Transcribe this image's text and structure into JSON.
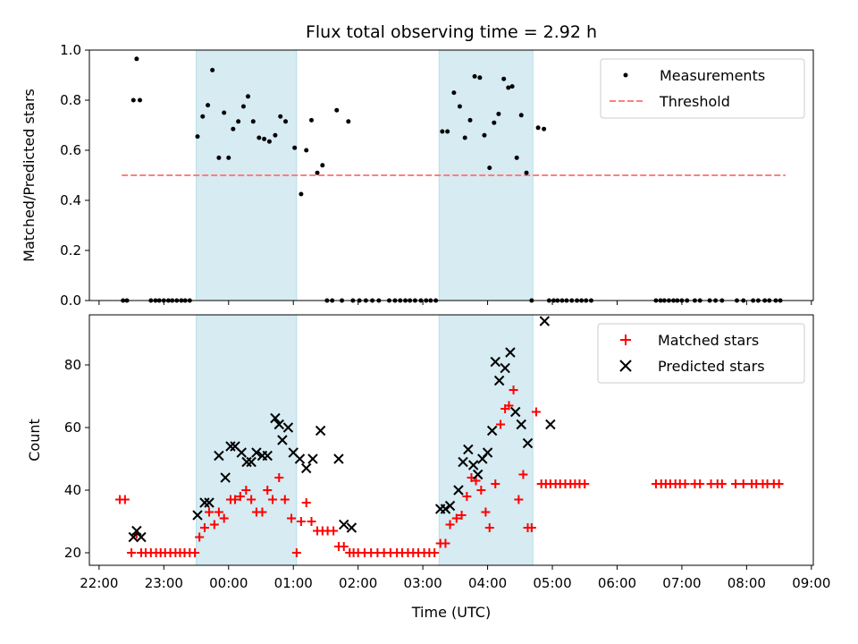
{
  "chart_data": [
    {
      "type": "scatter",
      "title": "Flux total observing time = 2.92 h",
      "ylabel": "Matched/Predicted stars",
      "xlabel": "",
      "xlim": [
        -2.15,
        9.03
      ],
      "ylim": [
        0,
        1.0
      ],
      "yticks": [
        0.0,
        0.2,
        0.4,
        0.6,
        0.8,
        1.0
      ],
      "ytick_labels": [
        "0.0",
        "0.2",
        "0.4",
        "0.6",
        "0.8",
        "1.0"
      ],
      "shaded_intervals": [
        [
          -0.5,
          1.05
        ],
        [
          3.25,
          4.7
        ]
      ],
      "shade_color": "#add8e6",
      "legend_position": "top-right",
      "series": [
        {
          "name": "Measurements",
          "marker": "dot",
          "color": "#000000",
          "x": [
            -1.63,
            -1.57,
            -1.47,
            -1.42,
            -1.37,
            -1.2,
            -1.13,
            -1.07,
            -1.0,
            -0.93,
            -0.87,
            -0.8,
            -0.73,
            -0.67,
            -0.6,
            -0.48,
            -0.4,
            -0.32,
            -0.25,
            -0.15,
            -0.07,
            0.0,
            0.07,
            0.15,
            0.23,
            0.3,
            0.38,
            0.47,
            0.55,
            0.63,
            0.72,
            0.8,
            0.88,
            1.02,
            1.12,
            1.2,
            1.28,
            1.37,
            1.45,
            1.52,
            1.6,
            1.67,
            1.75,
            1.85,
            1.92,
            2.02,
            2.12,
            2.22,
            2.32,
            2.48,
            2.57,
            2.65,
            2.73,
            2.8,
            2.88,
            2.97,
            3.05,
            3.12,
            3.2,
            3.3,
            3.38,
            3.48,
            3.57,
            3.65,
            3.73,
            3.8,
            3.88,
            3.95,
            4.03,
            4.1,
            4.17,
            4.25,
            4.32,
            4.38,
            4.45,
            4.52,
            4.6,
            4.68,
            4.78,
            4.87,
            4.95,
            5.02,
            5.08,
            5.15,
            5.22,
            5.3,
            5.38,
            5.45,
            5.52,
            5.6,
            6.6,
            6.67,
            6.73,
            6.8,
            6.87,
            6.93,
            7.0,
            7.08,
            7.2,
            7.28,
            7.43,
            7.52,
            7.62,
            7.85,
            7.95,
            8.1,
            8.18,
            8.28,
            8.35,
            8.45,
            8.52
          ],
          "y": [
            0,
            0,
            0.8,
            0.965,
            0.8,
            0,
            0,
            0,
            0,
            0,
            0,
            0,
            0,
            0,
            0,
            0.655,
            0.735,
            0.78,
            0.92,
            0.57,
            0.75,
            0.57,
            0.685,
            0.715,
            0.775,
            0.815,
            0.715,
            0.65,
            0.645,
            0.635,
            0.66,
            0.735,
            0.715,
            0.61,
            0.425,
            0.6,
            0.72,
            0.51,
            0.54,
            0,
            0,
            0.76,
            0,
            0.715,
            0,
            0,
            0,
            0,
            0,
            0,
            0,
            0,
            0,
            0,
            0,
            0,
            0,
            0,
            0,
            0.675,
            0.675,
            0.83,
            0.775,
            0.65,
            0.72,
            0.895,
            0.89,
            0.66,
            0.53,
            0.71,
            0.745,
            0.885,
            0.85,
            0.855,
            0.57,
            0.74,
            0.51,
            0,
            0.69,
            0.685,
            0,
            0,
            0,
            0,
            0,
            0,
            0,
            0,
            0,
            0,
            0,
            0,
            0,
            0,
            0,
            0,
            0,
            0,
            0,
            0,
            0,
            0,
            0,
            0,
            0,
            0,
            0,
            0,
            0,
            0,
            0
          ]
        },
        {
          "name": "Threshold",
          "marker": "dashed-line",
          "color": "#ff7f7f",
          "x": [
            -1.65,
            8.6
          ],
          "y": [
            0.5,
            0.5
          ]
        }
      ]
    },
    {
      "type": "scatter",
      "title": "",
      "ylabel": "Count",
      "xlabel": "Time (UTC)",
      "xlim": [
        -2.15,
        9.03
      ],
      "ylim": [
        16,
        96
      ],
      "yticks": [
        20,
        40,
        60,
        80
      ],
      "ytick_labels": [
        "20",
        "40",
        "60",
        "80"
      ],
      "xticks": [
        -2,
        -1,
        0,
        1,
        2,
        3,
        4,
        5,
        6,
        7,
        8,
        9
      ],
      "xtick_labels": [
        "22:00",
        "23:00",
        "00:00",
        "01:00",
        "02:00",
        "03:00",
        "04:00",
        "05:00",
        "06:00",
        "07:00",
        "08:00",
        "09:00"
      ],
      "shaded_intervals": [
        [
          -0.5,
          1.05
        ],
        [
          3.25,
          4.7
        ]
      ],
      "shade_color": "#add8e6",
      "legend_position": "top-right",
      "series": [
        {
          "name": "Matched stars",
          "marker": "plus",
          "color": "#ff0000",
          "x": [
            -1.68,
            -1.6,
            -1.5,
            -1.42,
            -1.35,
            -1.28,
            -1.2,
            -1.12,
            -1.05,
            -0.98,
            -0.9,
            -0.82,
            -0.75,
            -0.68,
            -0.6,
            -0.52,
            -0.45,
            -0.37,
            -0.3,
            -0.22,
            -0.15,
            -0.07,
            0.03,
            0.1,
            0.18,
            0.27,
            0.35,
            0.43,
            0.52,
            0.6,
            0.68,
            0.78,
            0.87,
            0.97,
            1.05,
            1.12,
            1.2,
            1.28,
            1.37,
            1.45,
            1.53,
            1.62,
            1.7,
            1.78,
            1.87,
            1.93,
            2.0,
            2.1,
            2.2,
            2.3,
            2.4,
            2.5,
            2.6,
            2.68,
            2.77,
            2.85,
            2.93,
            3.02,
            3.1,
            3.18,
            3.27,
            3.35,
            3.42,
            3.52,
            3.6,
            3.68,
            3.75,
            3.82,
            3.9,
            3.97,
            4.03,
            4.12,
            4.2,
            4.27,
            4.33,
            4.4,
            4.48,
            4.55,
            4.62,
            4.68,
            4.75,
            4.83,
            4.9,
            4.97,
            5.05,
            5.12,
            5.2,
            5.28,
            5.35,
            5.42,
            5.5,
            6.6,
            6.68,
            6.75,
            6.82,
            6.9,
            6.97,
            7.05,
            7.2,
            7.28,
            7.45,
            7.55,
            7.62,
            7.83,
            7.95,
            8.08,
            8.15,
            8.25,
            8.32,
            8.42,
            8.5
          ],
          "y": [
            37,
            37,
            20,
            26,
            20,
            20,
            20,
            20,
            20,
            20,
            20,
            20,
            20,
            20,
            20,
            20,
            25,
            28,
            33,
            29,
            33,
            31,
            37,
            37,
            38,
            40,
            37,
            33,
            33,
            40,
            37,
            44,
            37,
            31,
            20,
            30,
            36,
            30,
            27,
            27,
            27,
            27,
            22,
            22,
            20,
            20,
            20,
            20,
            20,
            20,
            20,
            20,
            20,
            20,
            20,
            20,
            20,
            20,
            20,
            20,
            23,
            23,
            29,
            31,
            32,
            38,
            44,
            43,
            40,
            33,
            28,
            42,
            61,
            66,
            67,
            72,
            37,
            45,
            28,
            28,
            65,
            42,
            42,
            42,
            42,
            42,
            42,
            42,
            42,
            42,
            42,
            42,
            42,
            42,
            42,
            42,
            42,
            42,
            42,
            42,
            42,
            42,
            42,
            42,
            42,
            42,
            42,
            42,
            42,
            42,
            42
          ]
        },
        {
          "name": "Predicted stars",
          "marker": "x",
          "color": "#000000",
          "x": [
            -1.47,
            -1.42,
            -1.35,
            -0.48,
            -0.37,
            -0.3,
            -0.15,
            -0.05,
            0.03,
            0.1,
            0.2,
            0.28,
            0.35,
            0.43,
            0.52,
            0.6,
            0.72,
            0.78,
            0.83,
            0.92,
            1.0,
            1.1,
            1.2,
            1.3,
            1.42,
            1.7,
            1.78,
            1.9,
            3.27,
            3.35,
            3.42,
            3.55,
            3.62,
            3.7,
            3.78,
            3.85,
            3.92,
            4.0,
            4.07,
            4.12,
            4.18,
            4.27,
            4.35,
            4.43,
            4.52,
            4.62,
            4.88,
            4.97
          ],
          "y": [
            25,
            27,
            25,
            32,
            36,
            36,
            51,
            44,
            54,
            54,
            52,
            49,
            49,
            52,
            51,
            51,
            63,
            61,
            56,
            60,
            52,
            50,
            47,
            50,
            59,
            50,
            29,
            28,
            34,
            34,
            35,
            40,
            49,
            53,
            48,
            45,
            50,
            52,
            59,
            81,
            75,
            79,
            84,
            65,
            61,
            55,
            94,
            61
          ]
        }
      ]
    }
  ]
}
